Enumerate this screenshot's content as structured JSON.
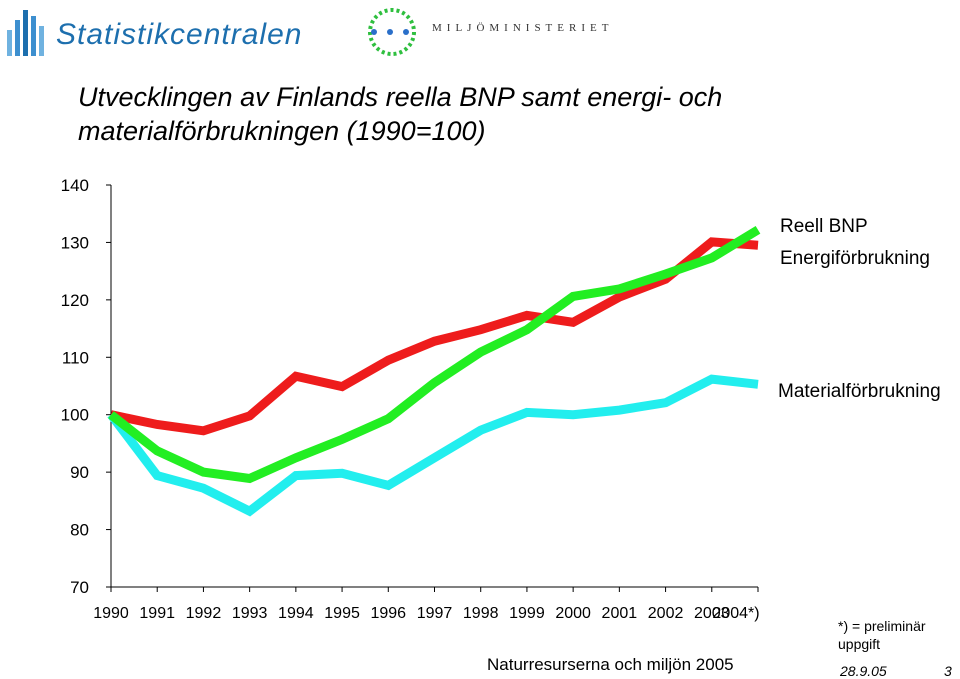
{
  "header": {
    "org_name": "Statistikcentralen",
    "ministry_name": "MILJÖMINISTERIET"
  },
  "chart_data": {
    "type": "line",
    "title_line1": "Utvecklingen av Finlands reella BNP samt energi- och",
    "title_line2": "materialförbrukningen (1990=100)",
    "x": [
      "1990",
      "1991",
      "1992",
      "1993",
      "1994",
      "1995",
      "1996",
      "1997",
      "1998",
      "1999",
      "2000",
      "2001",
      "2002",
      "2003",
      "2004*)"
    ],
    "ylim": [
      70,
      140
    ],
    "yticks": [
      70,
      80,
      90,
      100,
      110,
      120,
      130,
      140
    ],
    "xlabel": "",
    "ylabel": "",
    "grid": false,
    "series": [
      {
        "name": "Reell BNP",
        "color": "#ee1c1c",
        "values": [
          100,
          98.3,
          97.2,
          99.8,
          106.7,
          104.9,
          109.5,
          112.8,
          114.8,
          117.3,
          116.1,
          120.5,
          123.6,
          130.1,
          129.5
        ]
      },
      {
        "name": "Energiförbrukning",
        "color": "#22ee22",
        "values": [
          100,
          93.7,
          90,
          88.9,
          92.5,
          95.7,
          99.3,
          105.6,
          110.9,
          114.8,
          120.6,
          121.9,
          124.5,
          127.3,
          132.2
        ]
      },
      {
        "name": "Materialförbrukning",
        "color": "#22eeee",
        "values": [
          100,
          89.4,
          87.2,
          83.2,
          89.4,
          89.8,
          87.7,
          92.5,
          97.3,
          100.4,
          100,
          100.8,
          102.1,
          106.2,
          105.3
        ]
      }
    ],
    "legend": [
      "Reell BNP",
      "Energiförbrukning",
      "Materialförbrukning"
    ]
  },
  "footnote": {
    "line1": "*) = preliminär",
    "line2": "uppgift"
  },
  "footer": {
    "source": "Naturresurserna och miljön 2005",
    "date": "28.9.05",
    "page": "3"
  }
}
